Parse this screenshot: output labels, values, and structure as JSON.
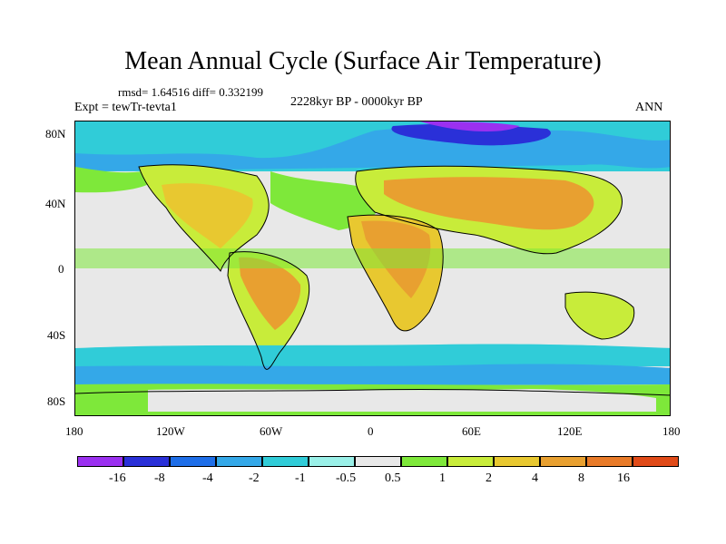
{
  "title": "Mean Annual Cycle (Surface Air Temperature)",
  "stats": "rmsd= 1.64516  diff= 0.332199",
  "experiment": "Expt = tewTr-tevta1",
  "period": "2228kyr BP - 0000kyr BP",
  "season": "ANN",
  "lat_ticks": [
    "80N",
    "40N",
    "0",
    "40S",
    "80S"
  ],
  "lon_ticks": [
    "180",
    "120W",
    "60W",
    "0",
    "60E",
    "120E",
    "180"
  ],
  "colorbar": {
    "colors": [
      "#9b30f0",
      "#2a30d8",
      "#1e6ee8",
      "#34a8e8",
      "#30ccd8",
      "#9af0e8",
      "#e8e8e8",
      "#7ee83a",
      "#c8ec3a",
      "#e8c830",
      "#e8a030",
      "#e87a28",
      "#e04a18"
    ],
    "labels": [
      "-16",
      "-8",
      "-4",
      "-2",
      "-1",
      "-0.5",
      "0.5",
      "1",
      "2",
      "4",
      "8",
      "16"
    ]
  }
}
